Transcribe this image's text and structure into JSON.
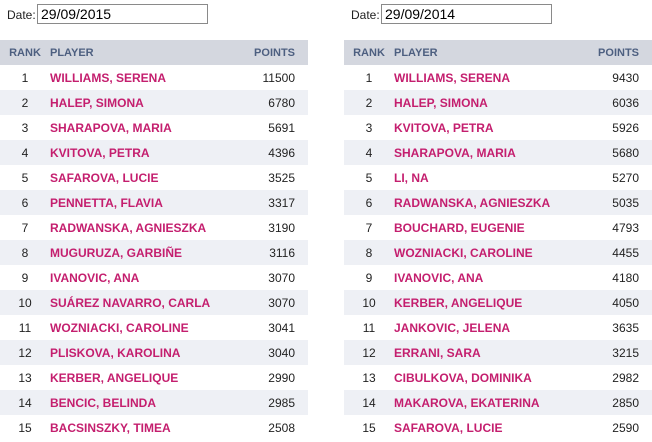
{
  "left": {
    "date_label": "Date:",
    "date_value": "29/09/2015",
    "headers": {
      "rank": "RANK",
      "player": "PLAYER",
      "points": "POINTS"
    },
    "rows": [
      {
        "rank": "1",
        "player": "WILLIAMS, SERENA",
        "points": "11500"
      },
      {
        "rank": "2",
        "player": "HALEP, SIMONA",
        "points": "6780"
      },
      {
        "rank": "3",
        "player": "SHARAPOVA, MARIA",
        "points": "5691"
      },
      {
        "rank": "4",
        "player": "KVITOVA, PETRA",
        "points": "4396"
      },
      {
        "rank": "5",
        "player": "SAFAROVA, LUCIE",
        "points": "3525"
      },
      {
        "rank": "6",
        "player": "PENNETTA, FLAVIA",
        "points": "3317"
      },
      {
        "rank": "7",
        "player": "RADWANSKA, AGNIESZKA",
        "points": "3190"
      },
      {
        "rank": "8",
        "player": "MUGURUZA, GARBIÑE",
        "points": "3116"
      },
      {
        "rank": "9",
        "player": "IVANOVIC, ANA",
        "points": "3070"
      },
      {
        "rank": "10",
        "player": "SUÁREZ NAVARRO, CARLA",
        "points": "3070"
      },
      {
        "rank": "11",
        "player": "WOZNIACKI, CAROLINE",
        "points": "3041"
      },
      {
        "rank": "12",
        "player": "PLISKOVA, KAROLINA",
        "points": "3040"
      },
      {
        "rank": "13",
        "player": "KERBER, ANGELIQUE",
        "points": "2990"
      },
      {
        "rank": "14",
        "player": "BENCIC, BELINDA",
        "points": "2985"
      },
      {
        "rank": "15",
        "player": "BACSINSZKY, TIMEA",
        "points": "2508"
      }
    ]
  },
  "right": {
    "date_label": "Date:",
    "date_value": "29/09/2014",
    "headers": {
      "rank": "RANK",
      "player": "PLAYER",
      "points": "POINTS"
    },
    "rows": [
      {
        "rank": "1",
        "player": "WILLIAMS, SERENA",
        "points": "9430"
      },
      {
        "rank": "2",
        "player": "HALEP, SIMONA",
        "points": "6036"
      },
      {
        "rank": "3",
        "player": "KVITOVA, PETRA",
        "points": "5926"
      },
      {
        "rank": "4",
        "player": "SHARAPOVA, MARIA",
        "points": "5680"
      },
      {
        "rank": "5",
        "player": "LI, NA",
        "points": "5270"
      },
      {
        "rank": "6",
        "player": "RADWANSKA, AGNIESZKA",
        "points": "5035"
      },
      {
        "rank": "7",
        "player": "BOUCHARD, EUGENIE",
        "points": "4793"
      },
      {
        "rank": "8",
        "player": "WOZNIACKI, CAROLINE",
        "points": "4455"
      },
      {
        "rank": "9",
        "player": "IVANOVIC, ANA",
        "points": "4180"
      },
      {
        "rank": "10",
        "player": "KERBER, ANGELIQUE",
        "points": "4050"
      },
      {
        "rank": "11",
        "player": "JANKOVIC, JELENA",
        "points": "3635"
      },
      {
        "rank": "12",
        "player": "ERRANI, SARA",
        "points": "3215"
      },
      {
        "rank": "13",
        "player": "CIBULKOVA, DOMINIKA",
        "points": "2982"
      },
      {
        "rank": "14",
        "player": "MAKAROVA, EKATERINA",
        "points": "2850"
      },
      {
        "rank": "15",
        "player": "SAFAROVA, LUCIE",
        "points": "2590"
      }
    ]
  },
  "colors": {
    "player_name": "#c41e6e",
    "header_bg": "#d4d7df",
    "header_text": "#4d5f80",
    "row_alt_bg": "#eef0f5"
  }
}
